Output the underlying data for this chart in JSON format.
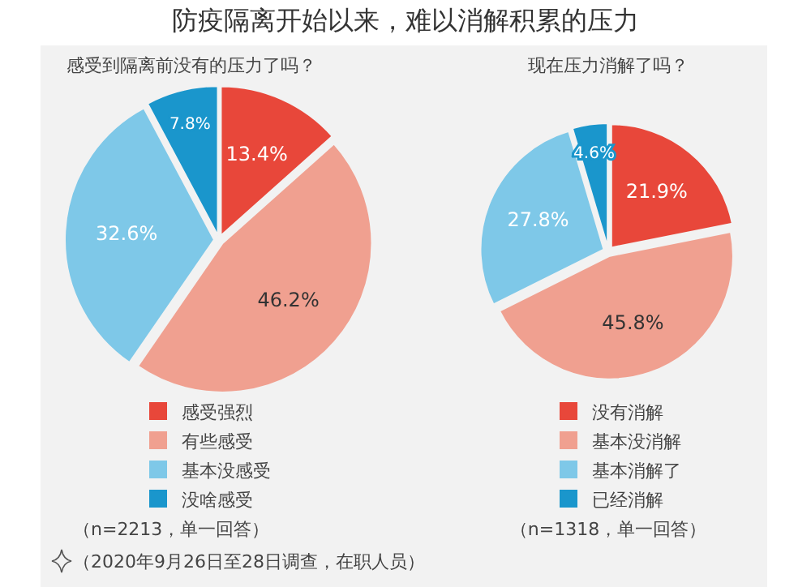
{
  "chart_data": [
    {
      "type": "pie",
      "title": "防疫隔离开始以来，难以消解积累的压力",
      "subtitle": "感受到隔离前没有的压力了吗？",
      "categories": [
        "感受强烈",
        "有些感受",
        "基本没感受",
        "没啥感受"
      ],
      "values": [
        13.4,
        46.2,
        32.6,
        7.8
      ],
      "value_labels": [
        "13.4%",
        "46.2%",
        "32.6%",
        "7.8%"
      ],
      "colors": [
        "#e8473a",
        "#f0a090",
        "#7ec8e8",
        "#1a96cc"
      ],
      "legend": "bottom",
      "annotations": [
        "（n=2213，单一回答）",
        "（2020年9月26日至28日调查，在职人员）"
      ]
    },
    {
      "type": "pie",
      "subtitle": "现在压力消解了吗？",
      "categories": [
        "没有消解",
        "基本没消解",
        "基本消解了",
        "已经消解"
      ],
      "values": [
        21.9,
        45.8,
        27.8,
        4.6
      ],
      "value_labels": [
        "21.9%",
        "45.8%",
        "27.8%",
        "4.6%"
      ],
      "colors": [
        "#e8473a",
        "#f0a090",
        "#7ec8e8",
        "#1a96cc"
      ],
      "legend": "bottom",
      "annotations": [
        "（n=1318，单一回答）"
      ]
    }
  ]
}
